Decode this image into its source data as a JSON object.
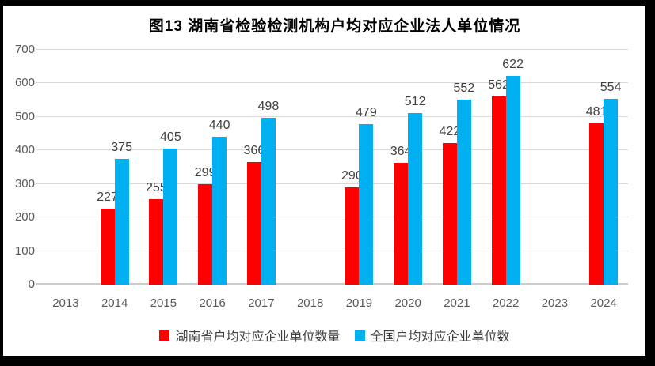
{
  "chart_data": {
    "type": "bar",
    "title": "图13 湖南省检验检测机构户均对应企业法人单位情况",
    "categories": [
      "2013",
      "2014",
      "2015",
      "2016",
      "2017",
      "2018",
      "2019",
      "2020",
      "2021",
      "2022",
      "2023",
      "2024"
    ],
    "series": [
      {
        "name": "湖南省户均对应企业单位数量",
        "color": "#ff0000",
        "values": [
          null,
          227,
          255,
          299,
          366,
          null,
          290,
          364,
          422,
          562,
          null,
          481
        ]
      },
      {
        "name": "全国户均对应企业单位数",
        "color": "#00b0f0",
        "values": [
          null,
          375,
          405,
          440,
          498,
          null,
          479,
          512,
          552,
          622,
          null,
          554
        ]
      }
    ],
    "xlabel": "",
    "ylabel": "",
    "ylim": [
      0,
      700
    ],
    "ytick_step": 100,
    "grid": true,
    "legend_position": "bottom",
    "data_labels": true,
    "colors": {
      "grid": "#d9d9d9",
      "tick_text": "#595959",
      "label_text": "#404040",
      "frame": "#000000"
    }
  }
}
